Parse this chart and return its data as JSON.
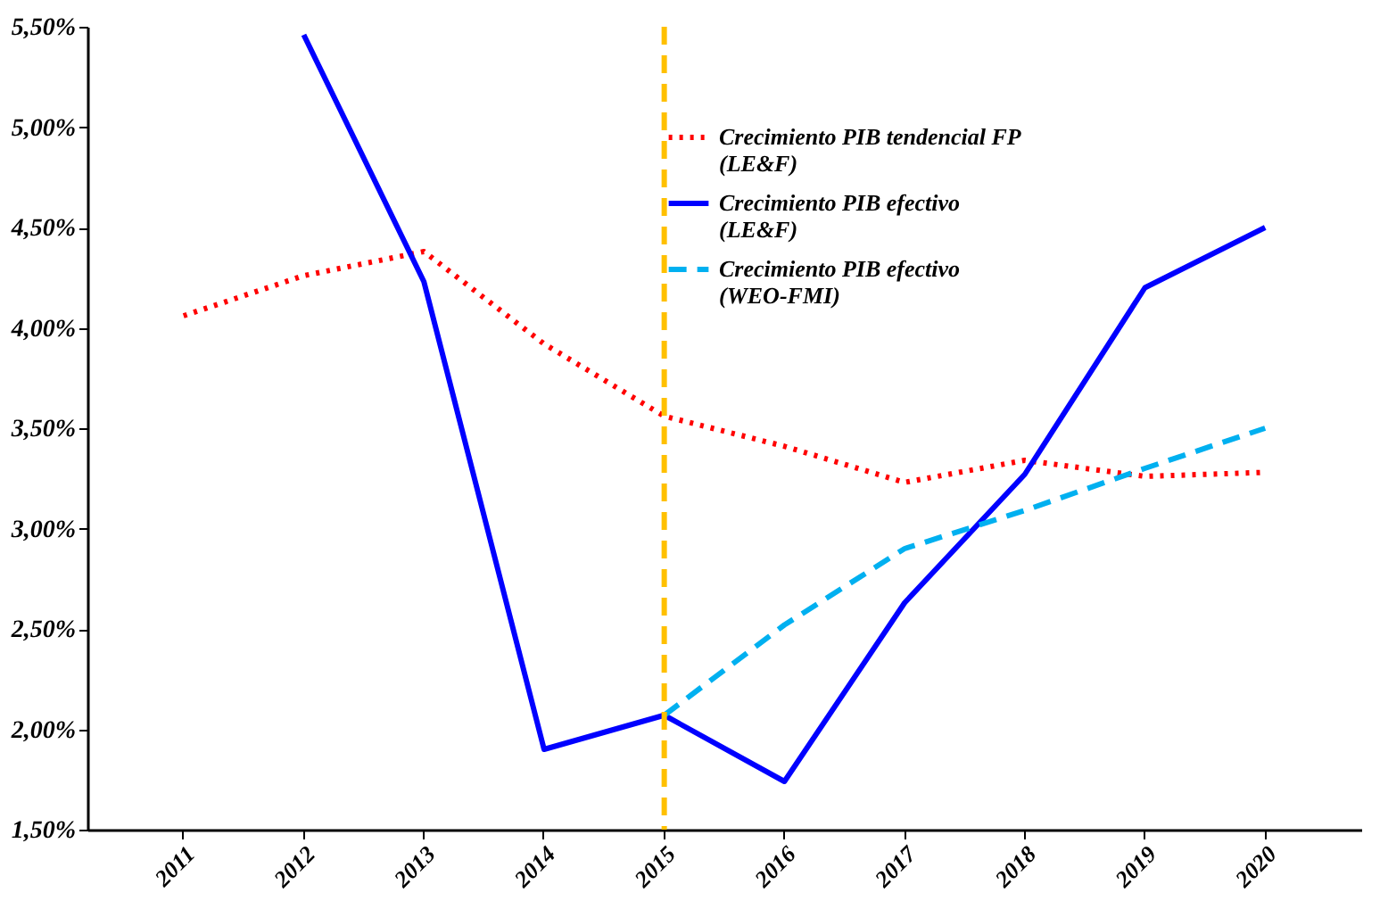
{
  "chart_data": {
    "type": "line",
    "categories": [
      "2011",
      "2012",
      "2013",
      "2014",
      "2015",
      "2016",
      "2017",
      "2018",
      "2019",
      "2020"
    ],
    "series": [
      {
        "name": "Crecimiento PIB tendencial FP\n(LE&F)",
        "color": "#ff0000",
        "line_style": "dotted",
        "values": [
          4.06,
          4.26,
          4.38,
          3.92,
          3.56,
          3.41,
          3.23,
          3.34,
          3.26,
          3.28
        ]
      },
      {
        "name": "Crecimiento PIB efectivo\n(LE&F)",
        "color": "#0000ff",
        "line_style": "solid",
        "values": [
          null,
          5.46,
          4.23,
          1.9,
          2.07,
          1.74,
          2.63,
          3.27,
          4.2,
          4.5
        ]
      },
      {
        "name": "Crecimiento PIB efectivo\n(WEO-FMI)",
        "color": "#00b0f0",
        "line_style": "dashed",
        "values": [
          null,
          null,
          null,
          null,
          2.07,
          2.52,
          2.9,
          3.09,
          3.3,
          3.5
        ]
      }
    ],
    "ylim": [
      1.5,
      5.5
    ],
    "yticks": [
      {
        "value": 1.5,
        "label": "1,50%"
      },
      {
        "value": 2.0,
        "label": "2,00%"
      },
      {
        "value": 2.5,
        "label": "2,50%"
      },
      {
        "value": 3.0,
        "label": "3,00%"
      },
      {
        "value": 3.5,
        "label": "3,50%"
      },
      {
        "value": 4.0,
        "label": "4,00%"
      },
      {
        "value": 4.5,
        "label": "4,50%"
      },
      {
        "value": 5.0,
        "label": "5,00%"
      },
      {
        "value": 5.5,
        "label": "5,50%"
      }
    ],
    "ref_lines": [
      {
        "axis": "x",
        "value": "2015",
        "color": "#ffc000",
        "line_style": "dashed"
      }
    ],
    "legend": "top right",
    "grid": false
  }
}
